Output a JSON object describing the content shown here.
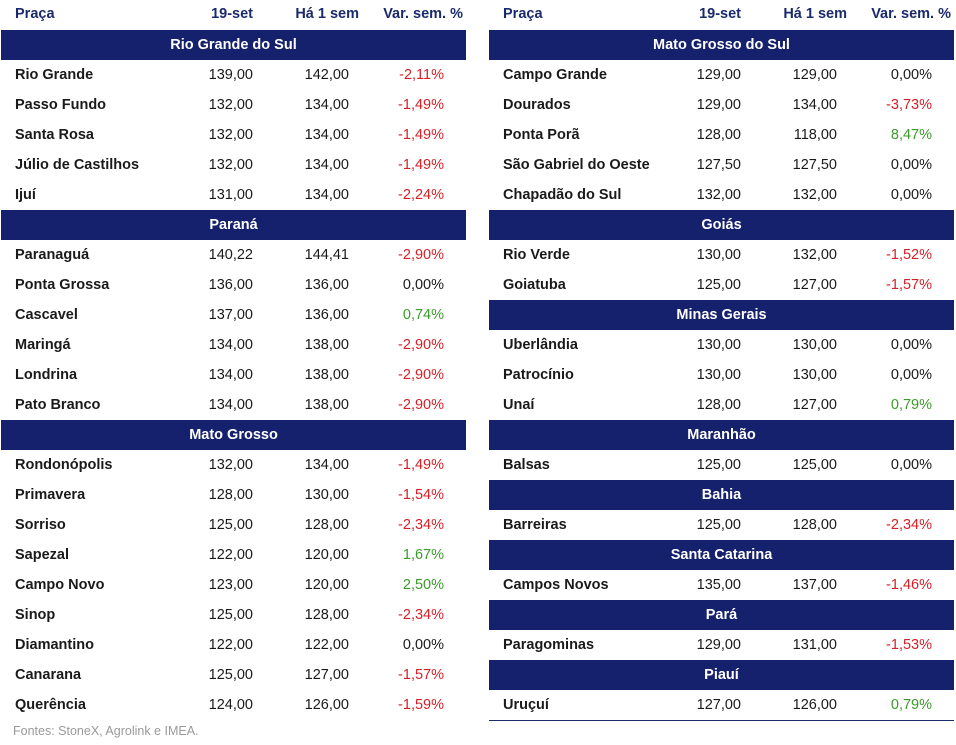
{
  "headers": {
    "city": "Praça",
    "date1": "19-set",
    "date2": "Há 1 sem",
    "var": "Var. sem. %"
  },
  "colors": {
    "header_bg": "#16216d",
    "negative": "#d61f26",
    "positive": "#3a9a2a"
  },
  "left": [
    {
      "name": "Rio Grande do Sul",
      "rows": [
        {
          "city": "Rio Grande",
          "v1": "139,00",
          "v2": "142,00",
          "var": "-2,11%",
          "sign": "neg"
        },
        {
          "city": "Passo Fundo",
          "v1": "132,00",
          "v2": "134,00",
          "var": "-1,49%",
          "sign": "neg"
        },
        {
          "city": "Santa Rosa",
          "v1": "132,00",
          "v2": "134,00",
          "var": "-1,49%",
          "sign": "neg"
        },
        {
          "city": "Júlio de Castilhos",
          "v1": "132,00",
          "v2": "134,00",
          "var": "-1,49%",
          "sign": "neg"
        },
        {
          "city": "Ijuí",
          "v1": "131,00",
          "v2": "134,00",
          "var": "-2,24%",
          "sign": "neg"
        }
      ]
    },
    {
      "name": "Paraná",
      "rows": [
        {
          "city": "Paranaguá",
          "v1": "140,22",
          "v2": "144,41",
          "var": "-2,90%",
          "sign": "neg"
        },
        {
          "city": "Ponta Grossa",
          "v1": "136,00",
          "v2": "136,00",
          "var": "0,00%",
          "sign": "zero"
        },
        {
          "city": "Cascavel",
          "v1": "137,00",
          "v2": "136,00",
          "var": "0,74%",
          "sign": "pos"
        },
        {
          "city": "Maringá",
          "v1": "134,00",
          "v2": "138,00",
          "var": "-2,90%",
          "sign": "neg"
        },
        {
          "city": "Londrina",
          "v1": "134,00",
          "v2": "138,00",
          "var": "-2,90%",
          "sign": "neg"
        },
        {
          "city": "Pato Branco",
          "v1": "134,00",
          "v2": "138,00",
          "var": "-2,90%",
          "sign": "neg"
        }
      ]
    },
    {
      "name": "Mato Grosso",
      "rows": [
        {
          "city": "Rondonópolis",
          "v1": "132,00",
          "v2": "134,00",
          "var": "-1,49%",
          "sign": "neg"
        },
        {
          "city": "Primavera",
          "v1": "128,00",
          "v2": "130,00",
          "var": "-1,54%",
          "sign": "neg"
        },
        {
          "city": "Sorriso",
          "v1": "125,00",
          "v2": "128,00",
          "var": "-2,34%",
          "sign": "neg"
        },
        {
          "city": "Sapezal",
          "v1": "122,00",
          "v2": "120,00",
          "var": "1,67%",
          "sign": "pos"
        },
        {
          "city": "Campo Novo",
          "v1": "123,00",
          "v2": "120,00",
          "var": "2,50%",
          "sign": "pos"
        },
        {
          "city": "Sinop",
          "v1": "125,00",
          "v2": "128,00",
          "var": "-2,34%",
          "sign": "neg"
        },
        {
          "city": "Diamantino",
          "v1": "122,00",
          "v2": "122,00",
          "var": "0,00%",
          "sign": "zero"
        },
        {
          "city": "Canarana",
          "v1": "125,00",
          "v2": "127,00",
          "var": "-1,57%",
          "sign": "neg"
        },
        {
          "city": "Querência",
          "v1": "124,00",
          "v2": "126,00",
          "var": "-1,59%",
          "sign": "neg"
        }
      ]
    }
  ],
  "right": [
    {
      "name": "Mato Grosso do Sul",
      "rows": [
        {
          "city": "Campo Grande",
          "v1": "129,00",
          "v2": "129,00",
          "var": "0,00%",
          "sign": "zero"
        },
        {
          "city": "Dourados",
          "v1": "129,00",
          "v2": "134,00",
          "var": "-3,73%",
          "sign": "neg"
        },
        {
          "city": "Ponta Porã",
          "v1": "128,00",
          "v2": "118,00",
          "var": "8,47%",
          "sign": "pos"
        },
        {
          "city": "São Gabriel do Oeste",
          "v1": "127,50",
          "v2": "127,50",
          "var": "0,00%",
          "sign": "zero"
        },
        {
          "city": "Chapadão do Sul",
          "v1": "132,00",
          "v2": "132,00",
          "var": "0,00%",
          "sign": "zero"
        }
      ]
    },
    {
      "name": "Goiás",
      "rows": [
        {
          "city": "Rio Verde",
          "v1": "130,00",
          "v2": "132,00",
          "var": "-1,52%",
          "sign": "neg"
        },
        {
          "city": "Goiatuba",
          "v1": "125,00",
          "v2": "127,00",
          "var": "-1,57%",
          "sign": "neg"
        }
      ]
    },
    {
      "name": "Minas Gerais",
      "rows": [
        {
          "city": "Uberlândia",
          "v1": "130,00",
          "v2": "130,00",
          "var": "0,00%",
          "sign": "zero"
        },
        {
          "city": "Patrocínio",
          "v1": "130,00",
          "v2": "130,00",
          "var": "0,00%",
          "sign": "zero"
        },
        {
          "city": "Unaí",
          "v1": "128,00",
          "v2": "127,00",
          "var": "0,79%",
          "sign": "pos"
        }
      ]
    },
    {
      "name": "Maranhão",
      "rows": [
        {
          "city": "Balsas",
          "v1": "125,00",
          "v2": "125,00",
          "var": "0,00%",
          "sign": "zero"
        }
      ]
    },
    {
      "name": "Bahia",
      "rows": [
        {
          "city": "Barreiras",
          "v1": "125,00",
          "v2": "128,00",
          "var": "-2,34%",
          "sign": "neg"
        }
      ]
    },
    {
      "name": "Santa Catarina",
      "rows": [
        {
          "city": "Campos Novos",
          "v1": "135,00",
          "v2": "137,00",
          "var": "-1,46%",
          "sign": "neg"
        }
      ]
    },
    {
      "name": "Pará",
      "rows": [
        {
          "city": "Paragominas",
          "v1": "129,00",
          "v2": "131,00",
          "var": "-1,53%",
          "sign": "neg"
        }
      ]
    },
    {
      "name": "Piauí",
      "rows": [
        {
          "city": "Uruçuí",
          "v1": "127,00",
          "v2": "126,00",
          "var": "0,79%",
          "sign": "pos"
        }
      ]
    }
  ],
  "source": "Fontes: StoneX, Agrolink e IMEA."
}
